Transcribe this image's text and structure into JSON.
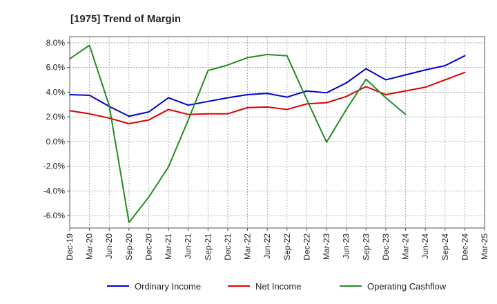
{
  "chart_data": {
    "type": "line",
    "title": "[1975]  Trend of Margin",
    "xlabel": "",
    "ylabel": "",
    "categories": [
      "Dec-19",
      "Mar-20",
      "Jun-20",
      "Sep-20",
      "Dec-20",
      "Mar-21",
      "Jun-21",
      "Sep-21",
      "Dec-21",
      "Mar-22",
      "Jun-22",
      "Sep-22",
      "Dec-22",
      "Mar-23",
      "Jun-23",
      "Sep-23",
      "Dec-23",
      "Mar-24",
      "Jun-24",
      "Sep-24",
      "Dec-24",
      "Mar-25"
    ],
    "y_ticks": [
      "8.0%",
      "6.0%",
      "4.0%",
      "2.0%",
      "0.0%",
      "-2.0%",
      "-4.0%",
      "-6.0%"
    ],
    "y_tick_values": [
      8,
      6,
      4,
      2,
      0,
      -2,
      -4,
      -6
    ],
    "ylim": [
      -7,
      8.5
    ],
    "grid": true,
    "legend_position": "bottom",
    "series": [
      {
        "name": "Ordinary Income",
        "color": "#0000cc",
        "values": [
          3.8,
          3.75,
          2.85,
          2.05,
          2.4,
          3.55,
          2.95,
          3.25,
          3.55,
          3.8,
          3.9,
          3.6,
          4.1,
          3.95,
          4.75,
          5.9,
          5.0,
          5.4,
          5.8,
          6.15,
          6.95,
          null
        ]
      },
      {
        "name": "Net Income",
        "color": "#dd0000",
        "values": [
          2.5,
          2.25,
          1.9,
          1.45,
          1.75,
          2.6,
          2.2,
          2.25,
          2.25,
          2.75,
          2.8,
          2.6,
          3.05,
          3.15,
          3.65,
          4.45,
          3.8,
          4.1,
          4.4,
          5.0,
          5.6,
          null
        ]
      },
      {
        "name": "Operating Cashflow",
        "color": "#228b22",
        "values": [
          6.7,
          7.8,
          2.9,
          -6.55,
          -4.5,
          -2.05,
          1.75,
          5.75,
          6.2,
          6.8,
          7.05,
          6.95,
          3.4,
          -0.05,
          2.6,
          5.05,
          3.55,
          2.2,
          null,
          null,
          null,
          null
        ]
      }
    ]
  }
}
